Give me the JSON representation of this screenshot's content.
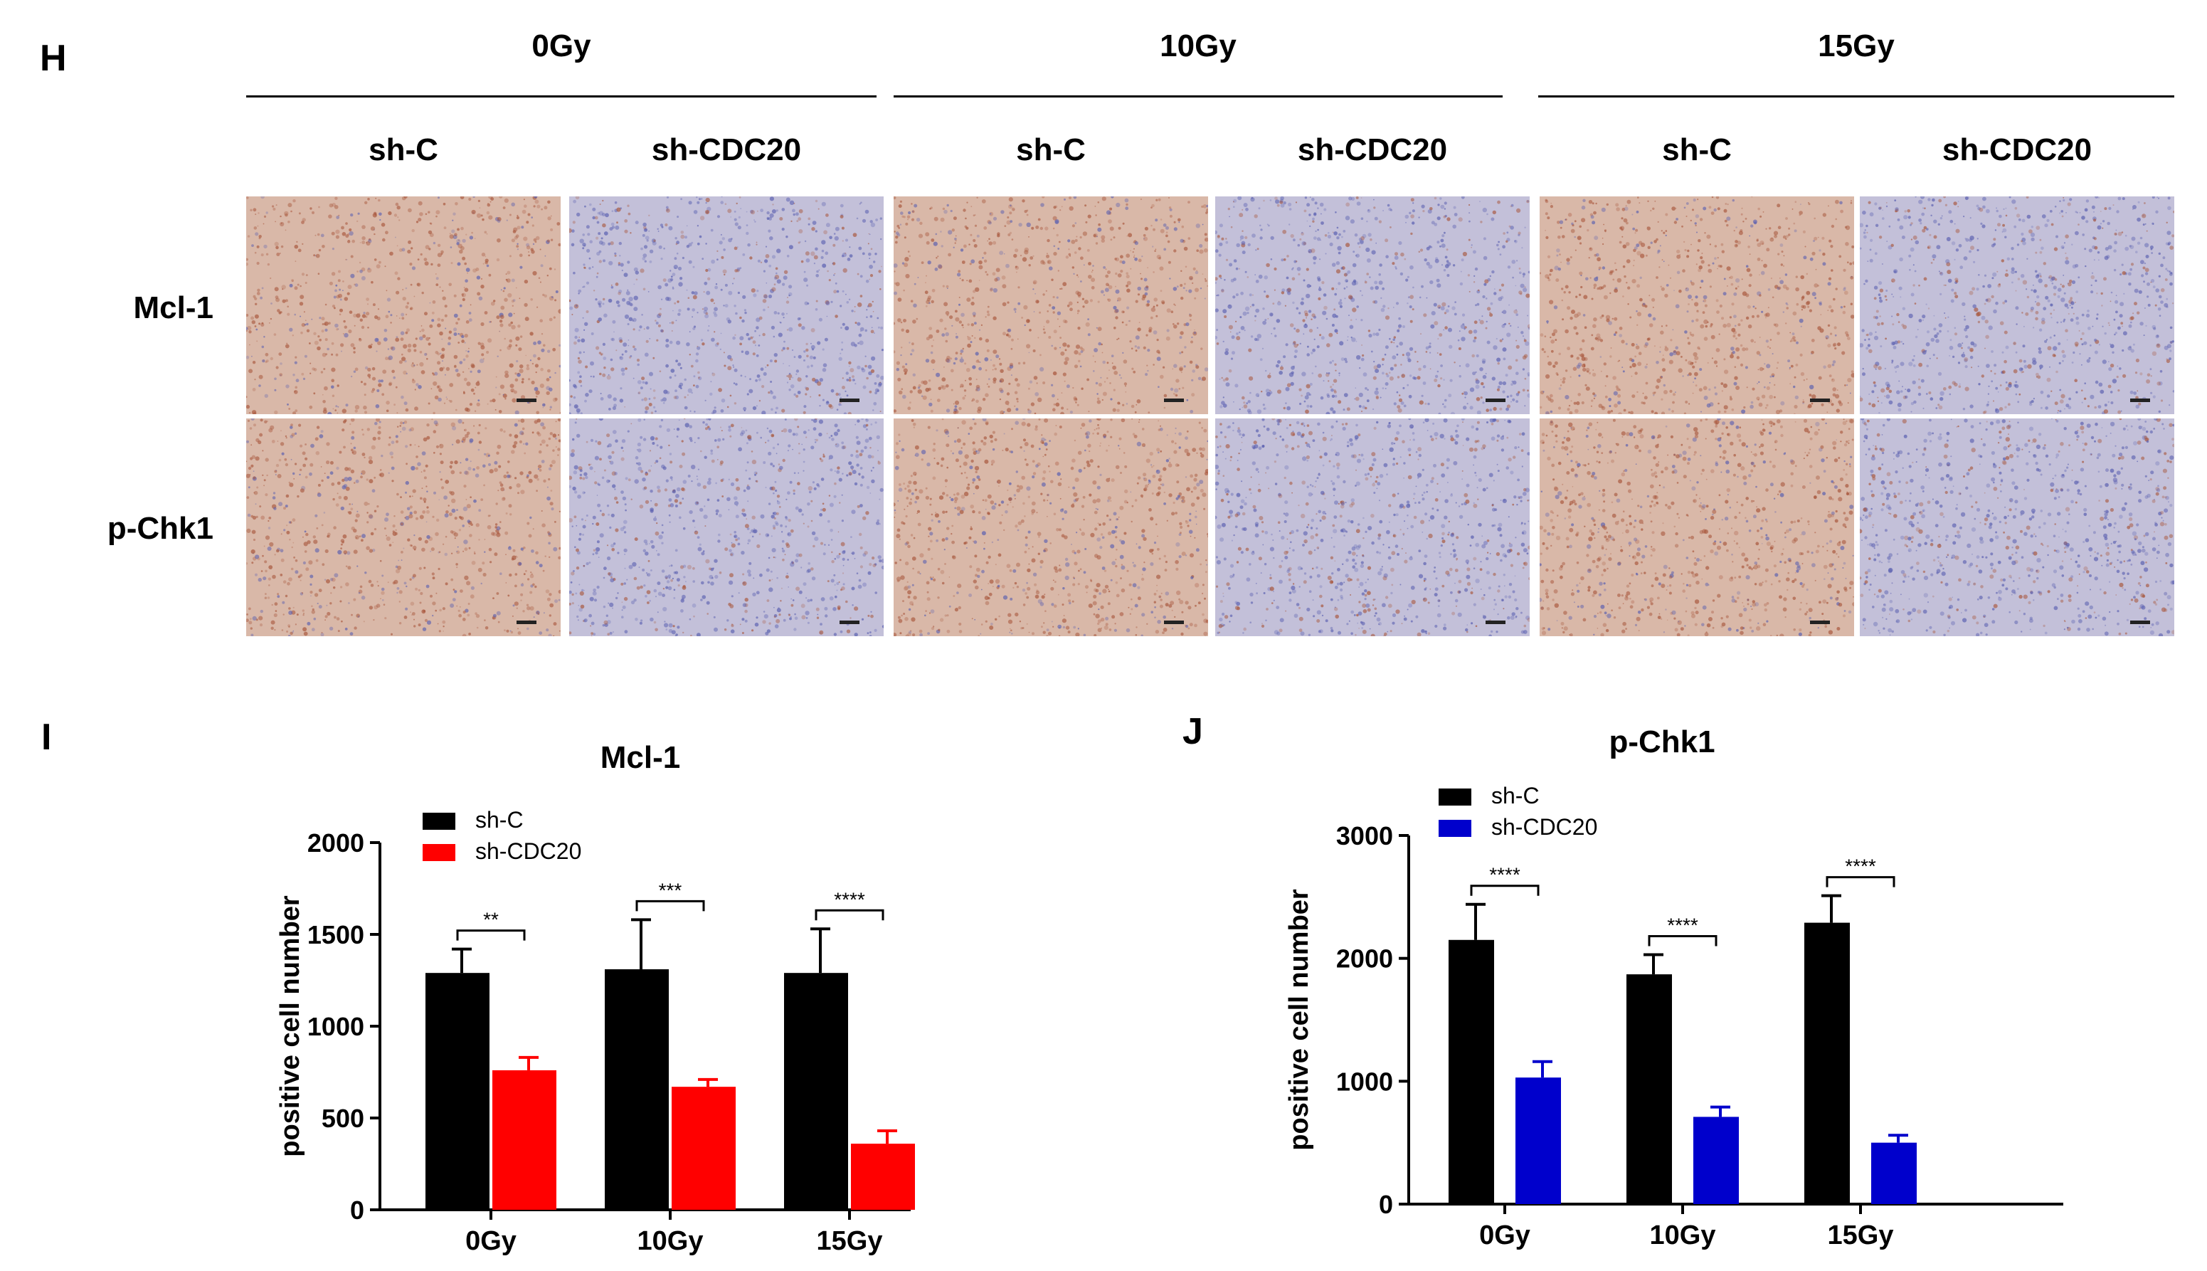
{
  "panels": {
    "H": "H",
    "I": "I",
    "J": "J"
  },
  "ihc": {
    "doses": [
      "0Gy",
      "10Gy",
      "15Gy"
    ],
    "groups": [
      "sh-C",
      "sh-CDC20",
      "sh-C",
      "sh-CDC20",
      "sh-C",
      "sh-CDC20"
    ],
    "rows": [
      "Mcl-1",
      "p-Chk1"
    ],
    "tile_colors": {
      "brown_base": "#d9b8a8",
      "blue_base": "#c3c0d9",
      "brown_dot": "#a8573d",
      "blue_dot": "#5a5fb0"
    }
  },
  "chart_data": [
    {
      "type": "bar",
      "title": "Mcl-1",
      "ylabel": "positive cell number",
      "categories": [
        "0Gy",
        "10Gy",
        "15Gy"
      ],
      "ylim": [
        0,
        2000
      ],
      "yticks": [
        0,
        500,
        1000,
        1500,
        2000
      ],
      "legend_position": "top-left",
      "series": [
        {
          "name": "sh-C",
          "color": "#000000",
          "values": [
            1290,
            1310,
            1290
          ],
          "errors": [
            130,
            270,
            240
          ]
        },
        {
          "name": "sh-CDC20",
          "color": "#ff0000",
          "values": [
            760,
            670,
            360
          ],
          "errors": [
            70,
            40,
            70
          ]
        }
      ],
      "significance": [
        "**",
        "***",
        "****"
      ]
    },
    {
      "type": "bar",
      "title": "p-Chk1",
      "ylabel": "positive cell number",
      "categories": [
        "0Gy",
        "10Gy",
        "15Gy"
      ],
      "ylim": [
        0,
        3000
      ],
      "yticks": [
        0,
        1000,
        2000,
        3000
      ],
      "legend_position": "top-left",
      "series": [
        {
          "name": "sh-C",
          "color": "#000000",
          "values": [
            2150,
            1870,
            2290
          ],
          "errors": [
            290,
            160,
            220
          ]
        },
        {
          "name": "sh-CDC20",
          "color": "#0000cc",
          "values": [
            1030,
            710,
            500
          ],
          "errors": [
            130,
            80,
            60
          ]
        }
      ],
      "significance": [
        "****",
        "****",
        "****"
      ]
    }
  ]
}
